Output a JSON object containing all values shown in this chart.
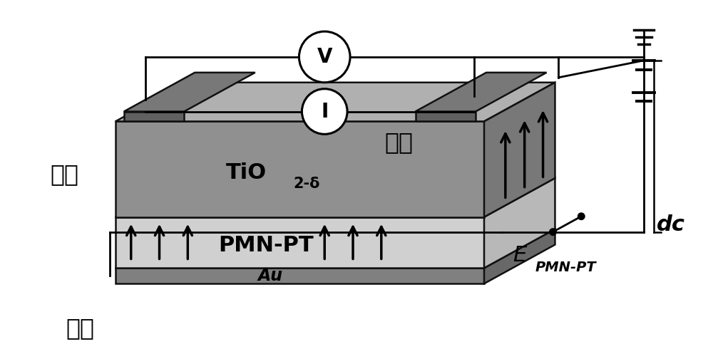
{
  "bg_color": "#ffffff",
  "colors": {
    "tio2_front": "#909090",
    "tio2_top": "#b0b0b0",
    "tio2_right": "#787878",
    "pmn_front": "#d0d0d0",
    "pmn_top": "#e0e0e0",
    "pmn_right": "#b8b8b8",
    "au_front": "#808080",
    "au_top": "#989898",
    "au_right": "#686868",
    "elec_front": "#606060",
    "elec_top": "#787878",
    "outline": "#111111"
  },
  "labels": {
    "source": "源极",
    "drain": "漏极",
    "gate": "棵极",
    "tio2_main": "TiO",
    "tio2_sub": "2-δ",
    "pmn_pt": "PMN-PT",
    "au": "Au",
    "voltmeter": "V",
    "ammeter": "I",
    "dc": "dc",
    "e_main": "E",
    "e_sub": "PMN-PT"
  },
  "fontsizes": {
    "chinese": 24,
    "layer_main": 22,
    "layer_sub": 15,
    "meter": 20,
    "dc": 22,
    "e_main": 22,
    "e_sub": 14
  }
}
